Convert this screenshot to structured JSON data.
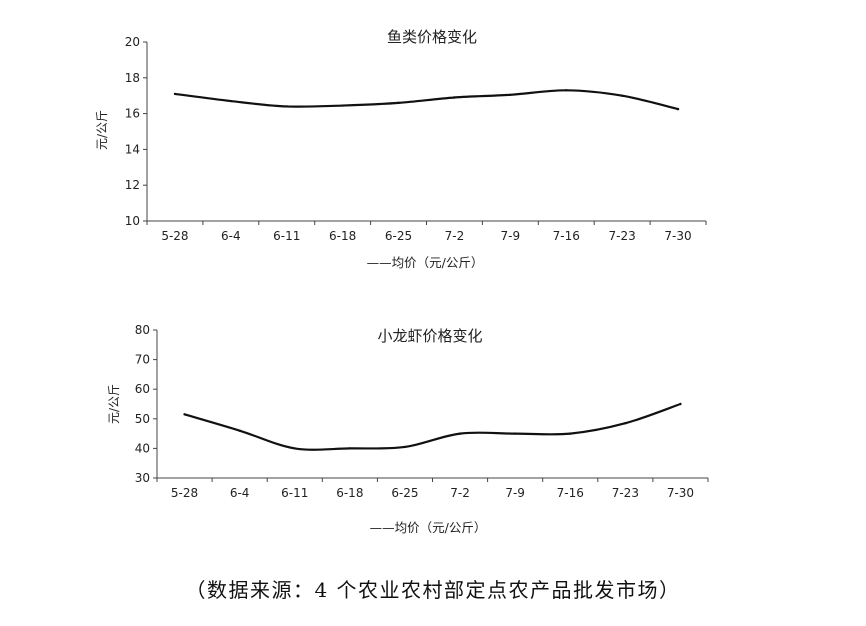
{
  "chart_data": [
    {
      "type": "line",
      "title": "鱼类价格变化",
      "ylabel": "元/公斤",
      "xlabel": "",
      "categories": [
        "5-28",
        "6-4",
        "6-11",
        "6-18",
        "6-25",
        "7-2",
        "7-9",
        "7-16",
        "7-23",
        "7-30"
      ],
      "ylim": [
        10,
        20
      ],
      "yticks": [
        "10",
        "12",
        "14",
        "16",
        "18",
        "20"
      ],
      "series": [
        {
          "name": "均价（元/公斤）",
          "values": [
            17.1,
            16.7,
            16.4,
            16.45,
            16.6,
            16.9,
            17.05,
            17.3,
            17.0,
            16.25
          ]
        }
      ],
      "legend_label": "——均价（元/公斤）",
      "legend_position": "bottom",
      "grid": false,
      "smooth": true
    },
    {
      "type": "line",
      "title": "小龙虾价格变化",
      "ylabel": "元/公斤",
      "xlabel": "",
      "categories": [
        "5-28",
        "6-4",
        "6-11",
        "6-18",
        "6-25",
        "7-2",
        "7-9",
        "7-16",
        "7-23",
        "7-30"
      ],
      "ylim": [
        30,
        80
      ],
      "yticks": [
        "30",
        "40",
        "50",
        "60",
        "70",
        "80"
      ],
      "series": [
        {
          "name": "均价（元/公斤）",
          "values": [
            51.5,
            46,
            40,
            40,
            40.5,
            45,
            45,
            45,
            48.5,
            55
          ]
        }
      ],
      "legend_label": "——均价（元/公斤）",
      "legend_position": "bottom",
      "grid": false,
      "smooth": true
    }
  ],
  "footer": {
    "source": "（数据来源：4 个农业农村部定点农产品批发市场）"
  },
  "colors": {
    "line": "#111111",
    "axis": "#444444"
  }
}
